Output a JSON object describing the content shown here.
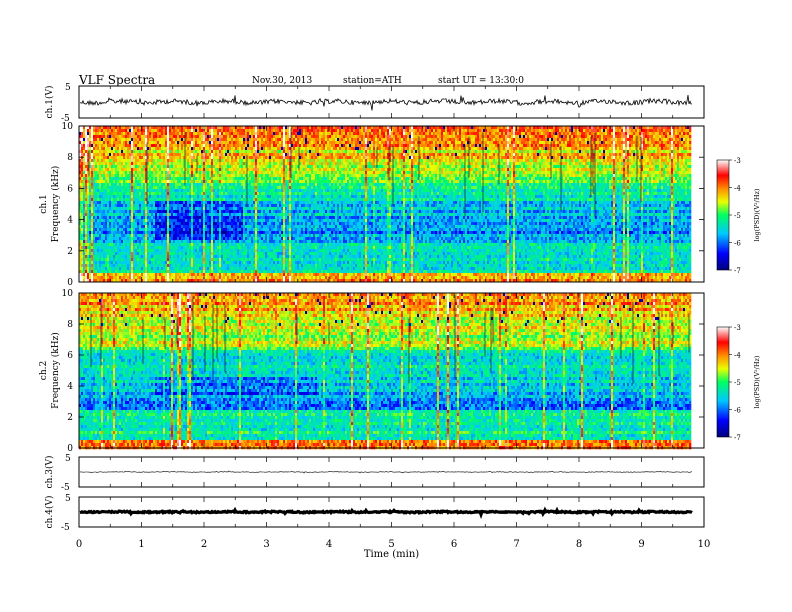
{
  "header": {
    "title": "VLF  Spectra",
    "date": "Nov.30, 2013",
    "station": "station=ATH",
    "start": "start  UT  =   13:30:0"
  },
  "chart_data": [
    {
      "type": "line",
      "panel": "ch1-waveform",
      "ylabel": "ch.1(V)",
      "ylim": [
        -5,
        5
      ],
      "yticks": [
        "5",
        "-5"
      ],
      "xlim": [
        0,
        10
      ],
      "series": [
        {
          "values_summary": {
            "baseline": 0,
            "noise_amplitude": 0.8
          }
        }
      ]
    },
    {
      "type": "heatmap",
      "panel": "ch1-spectrogram",
      "ylabel": "ch.1\nFrequency (kHz)",
      "ylim": [
        0,
        10
      ],
      "yticks": [
        "0",
        "2",
        "4",
        "6",
        "8",
        "10"
      ],
      "xlim": [
        0,
        9.82
      ],
      "zlim": [
        -7,
        -3
      ],
      "colorbar_label": "log(PSD)(V²/Hz)",
      "colorbar_ticks": [
        "-3",
        "-4",
        "-5",
        "-6",
        "-7"
      ]
    },
    {
      "type": "heatmap",
      "panel": "ch2-spectrogram",
      "ylabel": "ch.2\nFrequency (kHz)",
      "ylim": [
        0,
        10
      ],
      "yticks": [
        "0",
        "2",
        "4",
        "6",
        "8",
        "10"
      ],
      "xlim": [
        0,
        9.82
      ],
      "zlim": [
        -7,
        -3
      ],
      "colorbar_label": "log(PSD)(V²/Hz)",
      "colorbar_ticks": [
        "-3",
        "-4",
        "-5",
        "-6",
        "-7"
      ]
    },
    {
      "type": "line",
      "panel": "ch3-waveform",
      "ylabel": "ch.3(V)",
      "ylim": [
        -5,
        5
      ],
      "yticks": [
        "5",
        "-5"
      ],
      "series": [
        {
          "values_summary": {
            "baseline": 0,
            "noise_amplitude": 0.05
          }
        }
      ]
    },
    {
      "type": "line",
      "panel": "ch4-waveform",
      "ylabel": "ch.4(V)",
      "ylim": [
        -5,
        5
      ],
      "yticks": [
        "5",
        "-5"
      ],
      "series": [
        {
          "values_summary": {
            "baseline": 0,
            "noise_amplitude": 0.4
          }
        }
      ]
    },
    {
      "type": "axis",
      "panel": "time-axis",
      "xlabel": "Time  (min)",
      "xlim": [
        0,
        10
      ],
      "xticks": [
        "0",
        "1",
        "2",
        "3",
        "4",
        "5",
        "6",
        "7",
        "8",
        "9",
        "10"
      ]
    }
  ]
}
